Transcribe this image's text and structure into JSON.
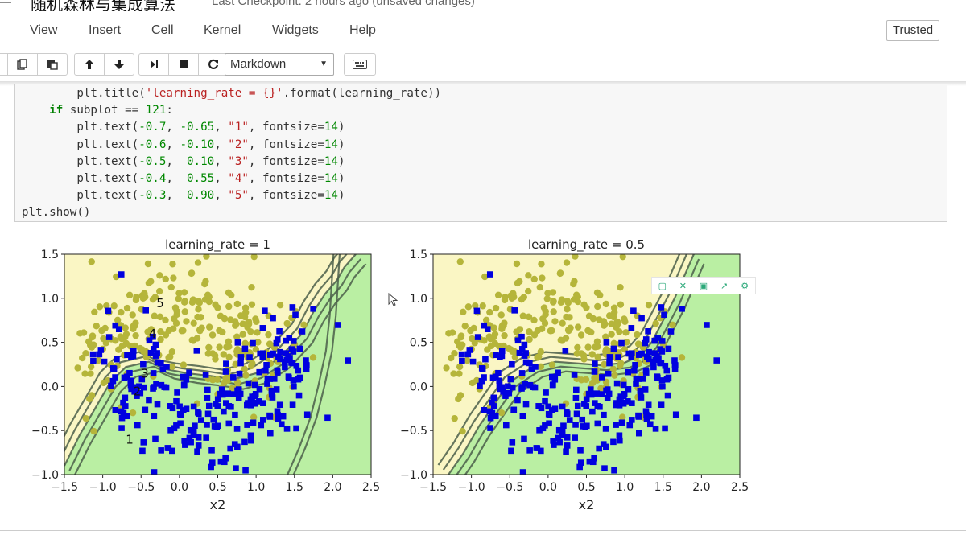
{
  "header": {
    "notebook_title": "随机森林与集成算法",
    "checkpoint": "Last Checkpoint: 2 hours ago (unsaved changes)"
  },
  "menu": {
    "items": [
      "View",
      "Insert",
      "Cell",
      "Kernel",
      "Widgets",
      "Help"
    ],
    "trusted": "Trusted"
  },
  "toolbar": {
    "cell_type": "Markdown",
    "icons": [
      "copy-icon",
      "paste-icon",
      "move-up-icon",
      "move-down-icon",
      "run-icon",
      "stop-icon",
      "restart-icon",
      "keyboard-icon"
    ]
  },
  "code_lines": [
    "        plt.title('learning_rate = {}'.format(learning_rate))",
    "    if subplot == 121:",
    "        plt.text(-0.7, -0.65, \"1\", fontsize=14)",
    "        plt.text(-0.6, -0.10, \"2\", fontsize=14)",
    "        plt.text(-0.5,  0.10, \"3\", fontsize=14)",
    "        plt.text(-0.4,  0.55, \"4\", fontsize=14)",
    "        plt.text(-0.3,  0.90, \"5\", fontsize=14)",
    "plt.show()"
  ],
  "colors": {
    "class0_marker": "#b5b53a",
    "class1_marker": "#0000e0",
    "region_yellow": "#faf6c4",
    "region_green": "#b2eea0",
    "contour": "#4a5e4a"
  },
  "chart_data": [
    {
      "type": "scatter",
      "title": "learning_rate = 1",
      "xlabel": "x2",
      "ylabel": "",
      "xlim": [
        -1.5,
        2.5
      ],
      "ylim": [
        -1.0,
        1.5
      ],
      "xticks": [
        "−1.5",
        "−1.0",
        "−0.5",
        "0.0",
        "0.5",
        "1.0",
        "1.5",
        "2.0",
        "2.5"
      ],
      "yticks": [
        "−1.0",
        "−0.5",
        "0.0",
        "0.5",
        "1.0",
        "1.5"
      ],
      "annotations": [
        {
          "text": "1",
          "x": -0.7,
          "y": -0.65
        },
        {
          "text": "2",
          "x": -0.6,
          "y": -0.1
        },
        {
          "text": "3",
          "x": -0.5,
          "y": 0.1
        },
        {
          "text": "4",
          "x": -0.4,
          "y": 0.55
        },
        {
          "text": "5",
          "x": -0.3,
          "y": 0.9
        }
      ],
      "boundary_x": [
        -1.5,
        -1.3,
        -1.1,
        -0.9,
        -0.7,
        -0.4,
        -0.2,
        0.1,
        0.4,
        0.7,
        1.0,
        1.3,
        1.6,
        1.75,
        1.9,
        2.05,
        2.15,
        2.3
      ],
      "boundary_y": [
        -0.9,
        -0.55,
        -0.25,
        0.05,
        0.22,
        0.28,
        0.2,
        0.15,
        0.12,
        0.08,
        0.15,
        0.32,
        0.6,
        0.85,
        1.05,
        1.2,
        1.35,
        1.5
      ],
      "second_boundary_x": [
        1.45,
        1.6,
        1.75,
        1.85,
        1.95,
        2.0,
        2.05
      ],
      "second_boundary_y": [
        -1.0,
        -0.7,
        -0.35,
        0.0,
        0.4,
        0.8,
        1.5
      ]
    },
    {
      "type": "scatter",
      "title": "learning_rate = 0.5",
      "xlabel": "x2",
      "ylabel": "",
      "xlim": [
        -1.5,
        2.5
      ],
      "ylim": [
        -1.0,
        1.5
      ],
      "xticks": [
        "−1.5",
        "−1.0",
        "−0.5",
        "0.0",
        "0.5",
        "1.0",
        "1.5",
        "2.0",
        "2.5"
      ],
      "yticks": [
        "−1.0",
        "−0.5",
        "0.0",
        "0.5",
        "1.0",
        "1.5"
      ],
      "annotations": [],
      "boundary_x": [
        -1.3,
        -1.1,
        -0.9,
        -0.7,
        -0.5,
        -0.2,
        0.1,
        0.4,
        0.7,
        1.0,
        1.2,
        1.35,
        1.5,
        1.65,
        1.8,
        1.9
      ],
      "boundary_y": [
        -1.0,
        -0.75,
        -0.45,
        -0.2,
        0.05,
        0.22,
        0.28,
        0.26,
        0.24,
        0.27,
        0.35,
        0.5,
        0.75,
        1.0,
        1.3,
        1.5
      ],
      "second_boundary_x": [],
      "second_boundary_y": []
    }
  ]
}
